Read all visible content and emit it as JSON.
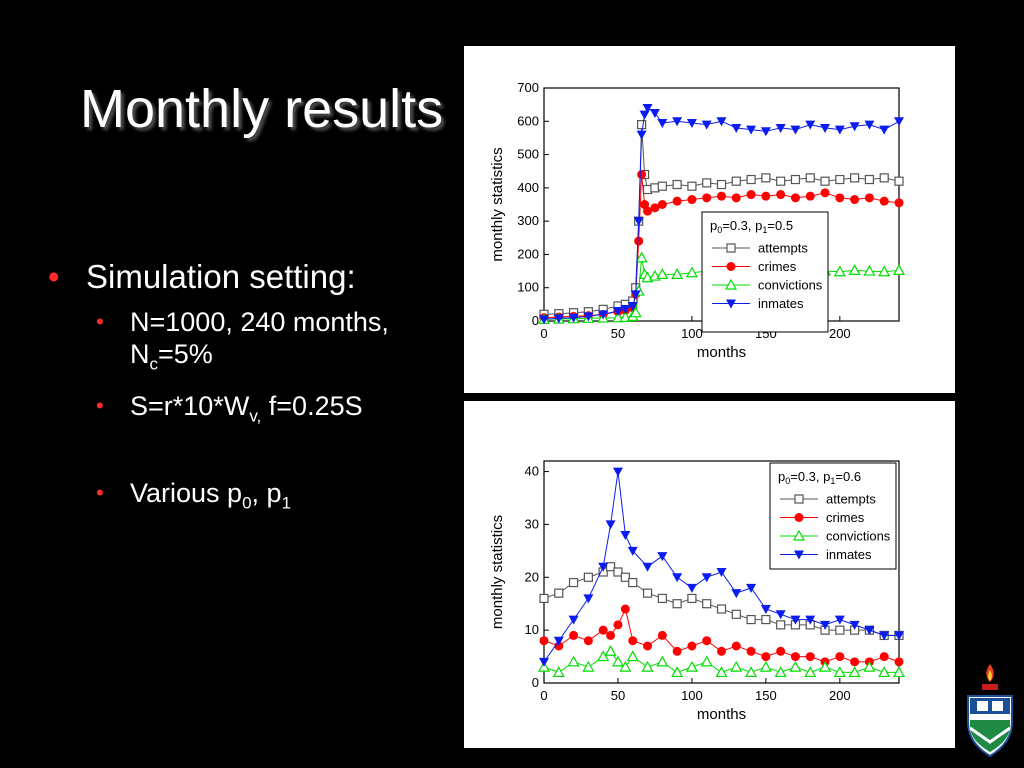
{
  "slide": {
    "title": "Monthly results",
    "bullet1": "Simulation setting:",
    "sub1a_pre": "N=1000, 240 months, N",
    "sub1a_sub": "c",
    "sub1a_post": "=5%",
    "sub1b_pre": "S=r*10*W",
    "sub1b_sub": "v,",
    "sub1b_post": " f=0.25S",
    "sub1c_pre": "Various p",
    "sub1c_sub0": "0",
    "sub1c_mid": ", p",
    "sub1c_sub1": "1"
  },
  "colors": {
    "attempts": "#555555",
    "crimes": "#ff0000",
    "convictions": "#00dd00",
    "inmates": "#0a1cf0"
  },
  "chart_data": [
    {
      "type": "line",
      "xlabel": "months",
      "ylabel": "monthly statistics",
      "xlim": [
        0,
        240
      ],
      "ylim": [
        0,
        700
      ],
      "xticks": [
        0,
        50,
        100,
        150,
        200
      ],
      "yticks": [
        0,
        100,
        200,
        300,
        400,
        500,
        600,
        700
      ],
      "legend_position": "center-right",
      "legend_title": "p0=0.3, p1=0.5",
      "legend_title_parts": [
        "p",
        "0",
        "=0.3, p",
        "1",
        "=0.5"
      ],
      "series": [
        {
          "name": "attempts",
          "marker": "square-open",
          "x": [
            0,
            10,
            20,
            30,
            40,
            50,
            55,
            60,
            62,
            64,
            66,
            68,
            70,
            75,
            80,
            90,
            100,
            110,
            120,
            130,
            140,
            150,
            160,
            170,
            180,
            190,
            200,
            210,
            220,
            230,
            240
          ],
          "y": [
            20,
            22,
            25,
            28,
            35,
            45,
            50,
            60,
            100,
            300,
            590,
            440,
            395,
            400,
            405,
            410,
            405,
            415,
            410,
            420,
            425,
            430,
            420,
            425,
            430,
            420,
            425,
            430,
            425,
            430,
            420
          ]
        },
        {
          "name": "crimes",
          "marker": "circle-filled",
          "x": [
            0,
            10,
            20,
            30,
            40,
            50,
            55,
            60,
            62,
            64,
            66,
            68,
            70,
            75,
            80,
            90,
            100,
            110,
            120,
            130,
            140,
            150,
            160,
            170,
            180,
            190,
            200,
            210,
            220,
            230,
            240
          ],
          "y": [
            10,
            12,
            14,
            16,
            20,
            28,
            32,
            40,
            80,
            240,
            440,
            350,
            330,
            340,
            350,
            360,
            365,
            370,
            375,
            370,
            380,
            375,
            380,
            370,
            375,
            385,
            370,
            365,
            370,
            360,
            355
          ]
        },
        {
          "name": "convictions",
          "marker": "triangle-open",
          "x": [
            0,
            10,
            20,
            30,
            40,
            50,
            55,
            60,
            62,
            64,
            66,
            68,
            70,
            75,
            80,
            90,
            100,
            110,
            120,
            130,
            140,
            150,
            160,
            170,
            180,
            190,
            200,
            210,
            220,
            230,
            240
          ],
          "y": [
            5,
            6,
            7,
            8,
            9,
            10,
            11,
            14,
            25,
            90,
            190,
            140,
            130,
            135,
            140,
            140,
            145,
            150,
            145,
            150,
            150,
            148,
            152,
            150,
            145,
            150,
            148,
            152,
            150,
            148,
            152
          ]
        },
        {
          "name": "inmates",
          "marker": "triangle-down-filled",
          "x": [
            0,
            10,
            20,
            30,
            40,
            50,
            55,
            60,
            62,
            64,
            66,
            68,
            70,
            75,
            80,
            90,
            100,
            110,
            120,
            130,
            140,
            150,
            160,
            170,
            180,
            190,
            200,
            210,
            220,
            230,
            240
          ],
          "y": [
            5,
            8,
            10,
            14,
            20,
            30,
            36,
            45,
            80,
            300,
            560,
            620,
            640,
            625,
            595,
            600,
            595,
            590,
            600,
            580,
            575,
            570,
            580,
            575,
            590,
            580,
            575,
            585,
            590,
            575,
            600
          ]
        }
      ]
    },
    {
      "type": "line",
      "xlabel": "months",
      "ylabel": "monthly statistics",
      "xlim": [
        0,
        240
      ],
      "ylim": [
        0,
        42
      ],
      "xticks": [
        0,
        50,
        100,
        150,
        200
      ],
      "yticks": [
        0,
        10,
        20,
        30,
        40
      ],
      "legend_position": "top-right",
      "legend_title": "p0=0.3, p1=0.6",
      "legend_title_parts": [
        "p",
        "0",
        "=0.3, p",
        "1",
        "=0.6"
      ],
      "series": [
        {
          "name": "attempts",
          "marker": "square-open",
          "x": [
            0,
            10,
            20,
            30,
            40,
            45,
            50,
            55,
            60,
            70,
            80,
            90,
            100,
            110,
            120,
            130,
            140,
            150,
            160,
            170,
            180,
            190,
            200,
            210,
            220,
            230,
            240
          ],
          "y": [
            16,
            17,
            19,
            20,
            21,
            22,
            21,
            20,
            19,
            17,
            16,
            15,
            16,
            15,
            14,
            13,
            12,
            12,
            11,
            11,
            11,
            10,
            10,
            10,
            10,
            9,
            9
          ]
        },
        {
          "name": "crimes",
          "marker": "circle-filled",
          "x": [
            0,
            10,
            20,
            30,
            40,
            45,
            50,
            55,
            60,
            70,
            80,
            90,
            100,
            110,
            120,
            130,
            140,
            150,
            160,
            170,
            180,
            190,
            200,
            210,
            220,
            230,
            240
          ],
          "y": [
            8,
            7,
            9,
            8,
            10,
            9,
            11,
            14,
            8,
            7,
            9,
            6,
            7,
            8,
            6,
            7,
            6,
            5,
            6,
            5,
            5,
            4,
            5,
            4,
            4,
            5,
            4
          ]
        },
        {
          "name": "convictions",
          "marker": "triangle-open",
          "x": [
            0,
            10,
            20,
            30,
            40,
            45,
            50,
            55,
            60,
            70,
            80,
            90,
            100,
            110,
            120,
            130,
            140,
            150,
            160,
            170,
            180,
            190,
            200,
            210,
            220,
            230,
            240
          ],
          "y": [
            3,
            2,
            4,
            3,
            5,
            6,
            4,
            3,
            5,
            3,
            4,
            2,
            3,
            4,
            2,
            3,
            2,
            3,
            2,
            3,
            2,
            3,
            2,
            2,
            3,
            2,
            2
          ]
        },
        {
          "name": "inmates",
          "marker": "triangle-down-filled",
          "x": [
            0,
            10,
            20,
            30,
            40,
            45,
            50,
            55,
            60,
            70,
            80,
            90,
            100,
            110,
            120,
            130,
            140,
            150,
            160,
            170,
            180,
            190,
            200,
            210,
            220,
            230,
            240
          ],
          "y": [
            4,
            8,
            12,
            16,
            22,
            30,
            40,
            28,
            25,
            22,
            24,
            20,
            18,
            20,
            21,
            17,
            18,
            14,
            13,
            12,
            12,
            11,
            12,
            11,
            10,
            9,
            9
          ]
        }
      ]
    }
  ]
}
